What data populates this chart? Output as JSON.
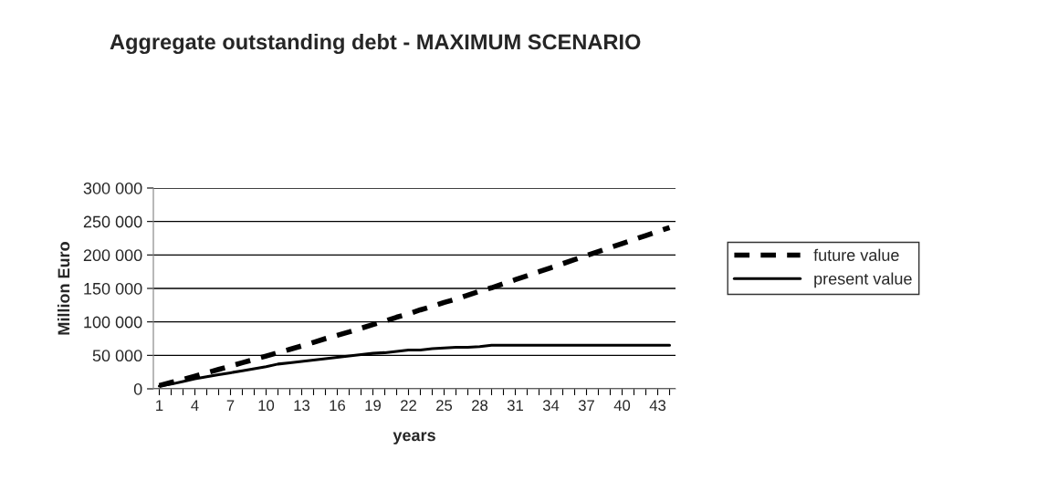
{
  "chart_data": {
    "type": "line",
    "title": "Aggregate outstanding debt - MAXIMUM SCENARIO",
    "xlabel": "years",
    "ylabel": "Million Euro",
    "categories": [
      "1",
      null,
      null,
      "4",
      null,
      null,
      "7",
      null,
      null,
      "10",
      null,
      null,
      "13",
      null,
      null,
      "16",
      null,
      null,
      "19",
      null,
      null,
      "22",
      null,
      null,
      "25",
      null,
      null,
      "28",
      null,
      null,
      "31",
      null,
      null,
      "34",
      null,
      null,
      "37",
      null,
      null,
      "40",
      null,
      null,
      "43",
      null
    ],
    "series": [
      {
        "name": "future value",
        "color": "#000000",
        "line_style": "dashed",
        "values": [
          5000,
          9500,
          14000,
          19000,
          24000,
          29000,
          34000,
          39000,
          44000,
          49000,
          54000,
          59000,
          64000,
          69500,
          75000,
          80000,
          85000,
          90500,
          96000,
          101000,
          107000,
          112000,
          118000,
          123000,
          129000,
          134000,
          140000,
          146000,
          151000,
          157000,
          163000,
          169000,
          175000,
          181000,
          187000,
          193000,
          199000,
          205000,
          211000,
          217000,
          223000,
          229000,
          235000,
          241000
        ]
      },
      {
        "name": "present value",
        "color": "#000000",
        "line_style": "solid",
        "values": [
          4000,
          7000,
          11000,
          15000,
          18000,
          21000,
          24000,
          27000,
          30000,
          33000,
          37000,
          39000,
          41000,
          43000,
          45000,
          47000,
          49000,
          51000,
          53000,
          54000,
          56000,
          58000,
          58000,
          60000,
          61000,
          62000,
          62000,
          63000,
          65000,
          65000,
          65000,
          65000,
          65000,
          65000,
          65000,
          65000,
          65000,
          65000,
          65000,
          65000,
          65000,
          65000,
          65000,
          65000
        ]
      }
    ],
    "ylim": [
      0,
      300000
    ],
    "yticks": [
      {
        "value": 0,
        "label": "0"
      },
      {
        "value": 50000,
        "label": "50 000"
      },
      {
        "value": 100000,
        "label": "100 000"
      },
      {
        "value": 150000,
        "label": "150 000"
      },
      {
        "value": 200000,
        "label": "200 000"
      },
      {
        "value": 250000,
        "label": "250 000"
      },
      {
        "value": 300000,
        "label": "300 000"
      }
    ],
    "grid": "y",
    "legend": "right"
  }
}
